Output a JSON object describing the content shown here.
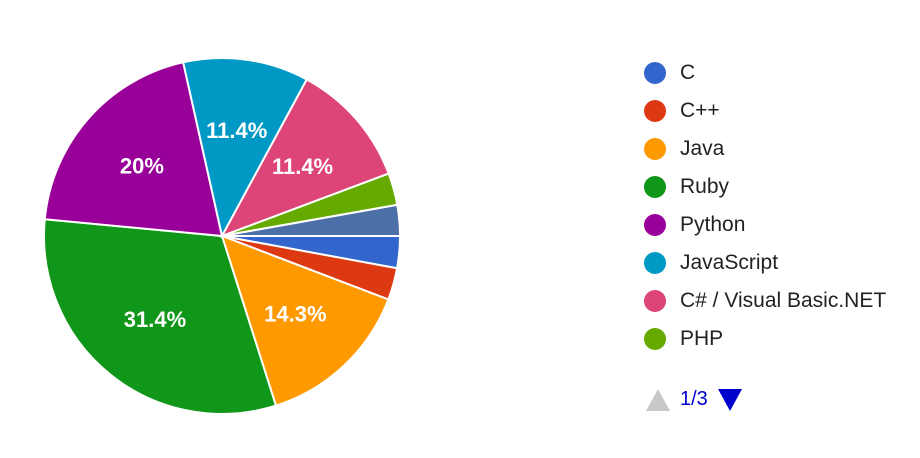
{
  "chart_data": {
    "type": "pie",
    "slices": [
      {
        "name": "C",
        "value": 2.9,
        "color": "#3366cc",
        "label": ""
      },
      {
        "name": "C++",
        "value": 2.9,
        "color": "#dc3912",
        "label": ""
      },
      {
        "name": "Java",
        "value": 14.3,
        "color": "#ff9900",
        "label": "14.3%"
      },
      {
        "name": "Ruby",
        "value": 31.4,
        "color": "#109618",
        "label": "31.4%"
      },
      {
        "name": "Python",
        "value": 20.0,
        "color": "#990099",
        "label": "20%"
      },
      {
        "name": "JavaScript",
        "value": 11.4,
        "color": "#0099c6",
        "label": "11.4%"
      },
      {
        "name": "C# / Visual Basic.NET",
        "value": 11.4,
        "color": "#dd4477",
        "label": "11.4%"
      },
      {
        "name": "PHP",
        "value": 2.9,
        "color": "#66aa00",
        "label": ""
      },
      {
        "name": "",
        "value": 2.8,
        "color": "#4c6fa8",
        "label": ""
      }
    ],
    "legend_position": "right",
    "legend_entries": [
      "C",
      "C++",
      "Java",
      "Ruby",
      "Python",
      "JavaScript",
      "C# / Visual Basic.NET",
      "PHP"
    ]
  },
  "pager": {
    "label": "1/3",
    "prev_icon": "triangle-up-icon",
    "next_icon": "triangle-down-icon",
    "active_color": "#0000cc",
    "disabled_color": "#c8c8c8"
  }
}
